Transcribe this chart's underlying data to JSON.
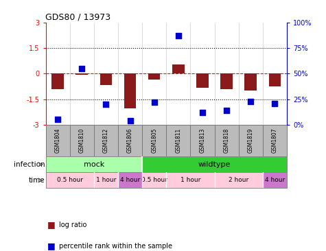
{
  "title": "GDS80 / 13973",
  "samples": [
    "GSM1804",
    "GSM1810",
    "GSM1812",
    "GSM1806",
    "GSM1805",
    "GSM1811",
    "GSM1813",
    "GSM1818",
    "GSM1819",
    "GSM1807"
  ],
  "log_ratio": [
    -0.9,
    -0.05,
    -0.65,
    -2.05,
    -0.35,
    0.55,
    -0.85,
    -0.9,
    -1.0,
    -0.75
  ],
  "percentile": [
    5,
    55,
    20,
    4,
    22,
    87,
    12,
    14,
    23,
    21
  ],
  "ylim_left": [
    -3,
    3
  ],
  "ylim_right": [
    0,
    100
  ],
  "yticks_left": [
    -3,
    -1.5,
    0,
    1.5,
    3
  ],
  "yticks_right": [
    0,
    25,
    50,
    75,
    100
  ],
  "ytick_labels_right": [
    "0%",
    "25%",
    "50%",
    "75%",
    "100%"
  ],
  "hline_dotted": [
    1.5,
    -1.5
  ],
  "hline_red_dashed": 0,
  "bar_color": "#8B1A1A",
  "dot_color": "#0000CC",
  "infection_mock": {
    "label": "mock",
    "color": "#AAFFAA",
    "span": [
      0,
      4
    ]
  },
  "infection_wildtype": {
    "label": "wildtype",
    "color": "#33CC33",
    "span": [
      4,
      10
    ]
  },
  "time_groups": [
    {
      "label": "0.5 hour",
      "color": "#FFCCDD",
      "span": [
        0,
        2
      ]
    },
    {
      "label": "1 hour",
      "color": "#FFCCDD",
      "span": [
        2,
        3
      ]
    },
    {
      "label": "4 hour",
      "color": "#CC77CC",
      "span": [
        3,
        4
      ]
    },
    {
      "label": "0.5 hour",
      "color": "#FFCCDD",
      "span": [
        4,
        5
      ]
    },
    {
      "label": "1 hour",
      "color": "#FFCCDD",
      "span": [
        5,
        7
      ]
    },
    {
      "label": "2 hour",
      "color": "#FFCCDD",
      "span": [
        7,
        9
      ]
    },
    {
      "label": "4 hour",
      "color": "#CC77CC",
      "span": [
        9,
        10
      ]
    }
  ],
  "legend_items": [
    {
      "label": "log ratio",
      "color": "#8B1A1A"
    },
    {
      "label": "percentile rank within the sample",
      "color": "#0000CC"
    }
  ],
  "sample_box_color": "#BBBBBB",
  "sample_box_edge_color": "#777777",
  "background_color": "#FFFFFF",
  "bar_width": 0.5,
  "dot_size": 40
}
